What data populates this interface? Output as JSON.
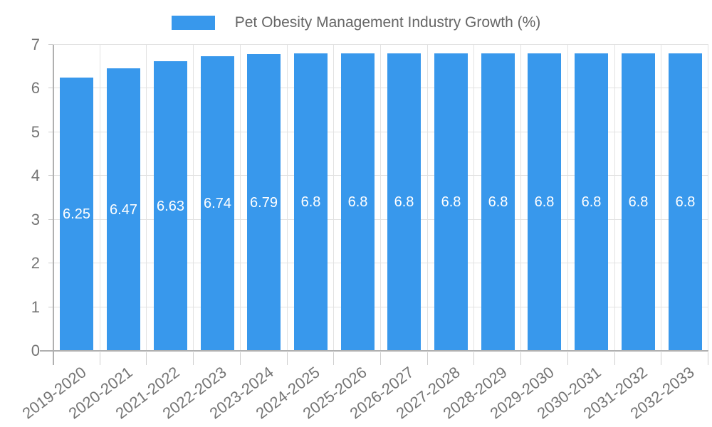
{
  "legend": {
    "label": "Pet Obesity Management Industry Growth (%)"
  },
  "chart_data": {
    "type": "bar",
    "title": "Pet Obesity Management Industry Growth (%)",
    "categories": [
      "2019-2020",
      "2020-2021",
      "2021-2022",
      "2022-2023",
      "2023-2024",
      "2024-2025",
      "2025-2026",
      "2026-2027",
      "2027-2028",
      "2028-2029",
      "2029-2030",
      "2030-2031",
      "2031-2032",
      "2032-2033"
    ],
    "values": [
      6.25,
      6.47,
      6.63,
      6.74,
      6.79,
      6.8,
      6.8,
      6.8,
      6.8,
      6.8,
      6.8,
      6.8,
      6.8,
      6.8
    ],
    "value_labels": [
      "6.25",
      "6.47",
      "6.63",
      "6.74",
      "6.79",
      "6.8",
      "6.8",
      "6.8",
      "6.8",
      "6.8",
      "6.8",
      "6.8",
      "6.8",
      "6.8"
    ],
    "xlabel": "",
    "ylabel": "",
    "ylim": [
      0,
      7
    ],
    "yticks": [
      0,
      1,
      2,
      3,
      4,
      5,
      6,
      7
    ],
    "grid": true,
    "legend_position": "top",
    "colors": {
      "bar": "#3898EC",
      "grid": "#E2E2E2",
      "axis": "#B0B0B0",
      "tick_mark": "#CFCFCF",
      "tick_text": "#757575",
      "legend_text": "#666666",
      "value_label_text": "#FFFFFF",
      "background": "#FFFFFF"
    }
  }
}
